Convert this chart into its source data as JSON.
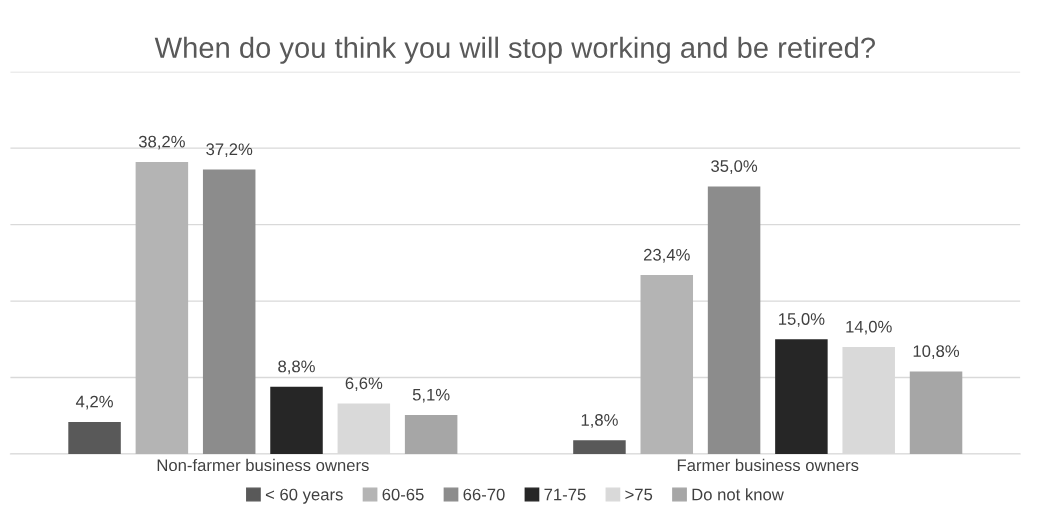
{
  "chart_data": {
    "type": "bar",
    "title": "When do you think you will stop working and be retired?",
    "categories": [
      "Non-farmer business owners",
      "Farmer business owners"
    ],
    "series": [
      {
        "name": "< 60 years",
        "color": "#595959",
        "values": [
          4.2,
          1.8
        ],
        "value_labels": [
          "4,2%",
          "1,8%"
        ]
      },
      {
        "name": "60-65",
        "color": "#b4b4b4",
        "values": [
          38.2,
          23.4
        ],
        "value_labels": [
          "38,2%",
          "23,4%"
        ]
      },
      {
        "name": "66-70",
        "color": "#8c8c8c",
        "values": [
          37.2,
          35.0
        ],
        "value_labels": [
          "37,2%",
          "35,0%"
        ]
      },
      {
        "name": "71-75",
        "color": "#262626",
        "values": [
          8.8,
          15.0
        ],
        "value_labels": [
          "8,8%",
          "15,0%"
        ]
      },
      {
        "name": ">75",
        "color": "#d9d9d9",
        "values": [
          6.6,
          14.0
        ],
        "value_labels": [
          "6,6%",
          "14,0%"
        ]
      },
      {
        "name": "Do not know",
        "color": "#a6a6a6",
        "values": [
          5.1,
          10.8
        ],
        "value_labels": [
          "5,1%",
          "10,8%"
        ]
      }
    ],
    "ylim": [
      0,
      50
    ],
    "yticks": [
      {
        "value": 0,
        "label": null
      },
      {
        "value": 10,
        "label": null
      },
      {
        "value": 20,
        "label": null
      },
      {
        "value": 30,
        "label": null
      },
      {
        "value": 40,
        "label": null
      },
      {
        "value": 50,
        "label": null
      }
    ],
    "grid": "y",
    "legend": "bottom",
    "tick_labels": "x"
  }
}
